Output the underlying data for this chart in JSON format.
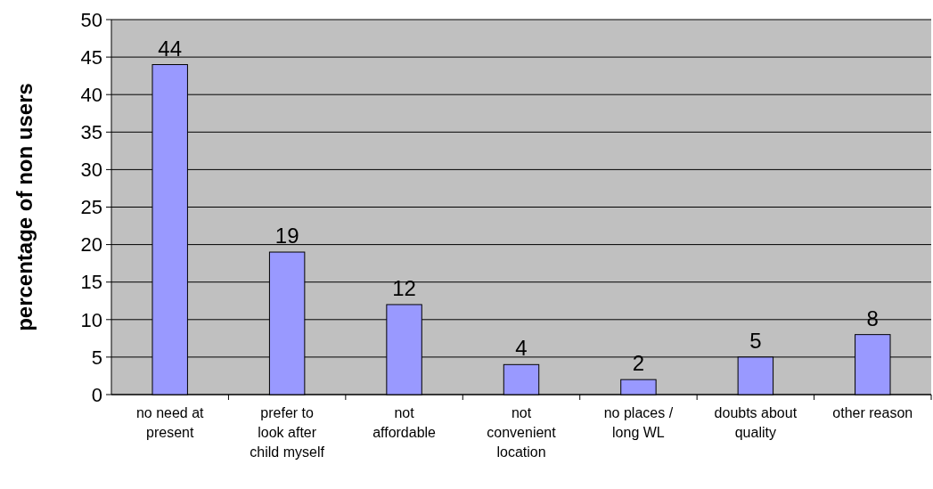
{
  "chart_data": {
    "type": "bar",
    "ylabel": "percentage of non users",
    "categories": [
      "no need at present",
      "prefer to look after child myself",
      "not affordable",
      "not convenient location",
      "no places / long WL",
      "doubts about quality",
      "other reason"
    ],
    "values": [
      44,
      19,
      12,
      4,
      2,
      5,
      8
    ],
    "color": "#9999ff",
    "ylim": [
      0,
      50
    ],
    "yticks": [
      0,
      5,
      10,
      15,
      20,
      25,
      30,
      35,
      40,
      45,
      50
    ],
    "grid": "y",
    "data_labels": true
  }
}
